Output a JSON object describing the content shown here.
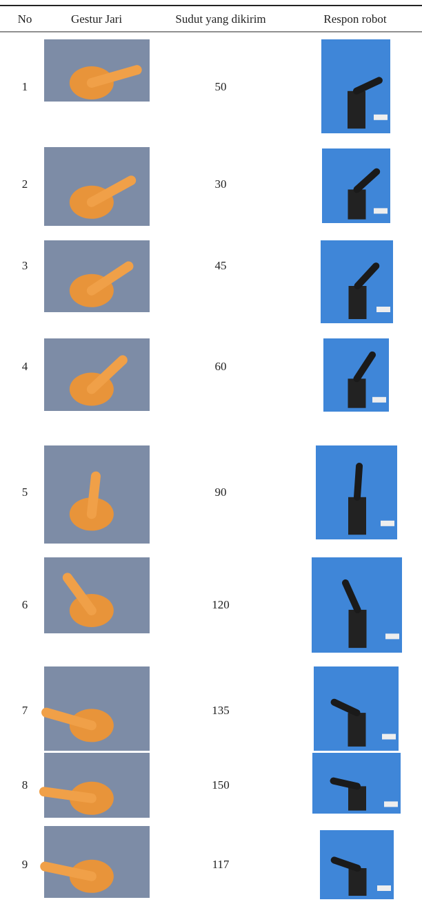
{
  "table": {
    "headers": [
      "No",
      "Gestur Jari",
      "Sudut yang dikirim",
      "Respon robot"
    ],
    "rows": [
      [
        "1",
        "50"
      ],
      [
        "2",
        "30"
      ],
      [
        "3",
        "45"
      ],
      [
        "4",
        "60"
      ],
      [
        "5",
        "90"
      ],
      [
        "6",
        "120"
      ],
      [
        "7",
        "135"
      ],
      [
        "8",
        "150"
      ],
      [
        "9",
        "117"
      ]
    ]
  }
}
